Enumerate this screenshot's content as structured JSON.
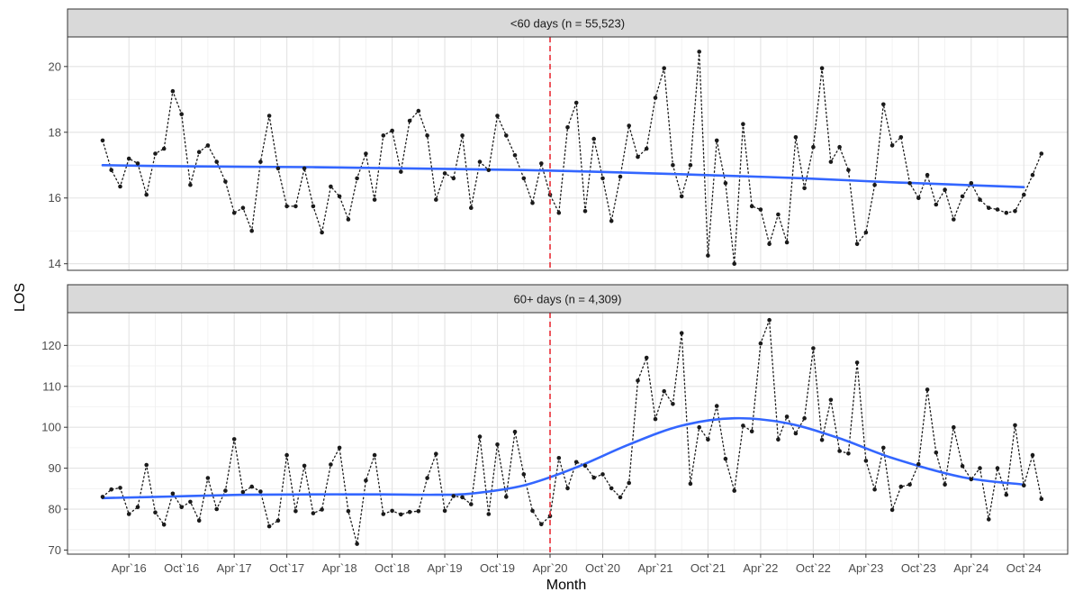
{
  "chart_data": {
    "type": "line",
    "xlabel": "Month",
    "ylabel": "LOS",
    "x_tick_labels": [
      "Apr`16",
      "Oct`16",
      "Apr`17",
      "Oct`17",
      "Apr`18",
      "Oct`18",
      "Apr`19",
      "Oct`19",
      "Apr`20",
      "Oct`20",
      "Apr`21",
      "Oct`21",
      "Apr`22",
      "Oct`22",
      "Apr`23",
      "Oct`23",
      "Apr`24",
      "Oct`24"
    ],
    "x_tick_months": [
      3,
      9,
      15,
      21,
      27,
      33,
      39,
      45,
      51,
      57,
      63,
      69,
      75,
      81,
      87,
      93,
      99,
      105
    ],
    "x_range_months": [
      -4,
      110
    ],
    "vline_month": 51,
    "vline_color": "#e8202a",
    "point_color": "#1a1a1a",
    "trend_color": "#3366ff",
    "grid": true,
    "panels": [
      {
        "strip_label": "<60 days (n = 55,523)",
        "ylim": [
          13.8,
          20.9
        ],
        "y_ticks": [
          14,
          16,
          18,
          20
        ],
        "x_start_month": 0,
        "monthly_values": [
          17.75,
          16.85,
          16.35,
          17.2,
          17.05,
          16.1,
          17.35,
          17.5,
          19.25,
          18.55,
          16.4,
          17.4,
          17.6,
          17.1,
          16.5,
          15.55,
          15.7,
          15.0,
          17.1,
          18.5,
          16.9,
          15.75,
          15.75,
          16.9,
          15.75,
          14.95,
          16.35,
          16.05,
          15.35,
          16.6,
          17.35,
          15.95,
          17.9,
          18.05,
          16.8,
          18.35,
          18.65,
          17.9,
          15.95,
          16.75,
          16.6,
          17.9,
          15.7,
          17.1,
          16.85,
          18.5,
          17.9,
          17.3,
          16.6,
          15.85,
          17.05,
          16.1,
          15.55,
          18.15,
          18.9,
          15.6,
          17.8,
          16.6,
          15.3,
          16.65,
          18.2,
          17.25,
          17.5,
          19.05,
          19.95,
          17.0,
          16.05,
          17.0,
          20.45,
          14.25,
          17.75,
          16.45,
          14.0,
          18.25,
          15.75,
          15.65,
          14.6,
          15.5,
          14.65,
          17.85,
          16.3,
          17.55,
          19.95,
          17.1,
          17.55,
          16.85,
          14.6,
          14.95,
          16.4,
          18.85,
          17.6,
          17.85,
          16.45,
          16.0,
          16.7,
          15.8,
          16.25,
          15.35,
          16.05,
          16.45,
          15.95,
          15.7,
          15.65,
          15.55,
          15.6,
          16.1,
          16.7,
          17.35
        ],
        "trend_values": [
          17.0,
          16.97,
          16.95,
          16.94,
          16.91,
          16.88,
          16.85,
          16.8,
          16.74,
          16.67,
          16.6,
          16.5,
          16.42,
          16.33
        ],
        "trend_months": [
          0,
          8,
          16,
          24,
          32,
          40,
          48,
          56,
          64,
          72,
          80,
          88,
          96,
          105
        ]
      },
      {
        "strip_label": "60+ days (n = 4,309)",
        "ylim": [
          69,
          128
        ],
        "y_ticks": [
          70,
          80,
          90,
          100,
          110,
          120
        ],
        "x_start_month": 0,
        "monthly_values": [
          83.0,
          84.8,
          85.2,
          78.8,
          80.5,
          90.8,
          79.2,
          76.2,
          83.8,
          80.5,
          81.8,
          77.2,
          87.6,
          80.0,
          84.5,
          97.1,
          84.2,
          85.5,
          84.3,
          75.8,
          77.2,
          93.2,
          79.5,
          90.6,
          79.0,
          79.9,
          90.9,
          95.0,
          79.5,
          71.5,
          87.0,
          93.2,
          78.8,
          79.6,
          78.7,
          79.3,
          79.5,
          87.6,
          93.5,
          79.6,
          83.2,
          82.9,
          81.2,
          97.7,
          78.8,
          95.8,
          83.0,
          98.9,
          88.5,
          79.6,
          76.3,
          78.3,
          92.5,
          85.1,
          91.5,
          90.6,
          87.7,
          88.5,
          85.1,
          82.9,
          86.4,
          111.4,
          117.0,
          102.0,
          108.8,
          105.7,
          123.0,
          86.2,
          100.0,
          97.0,
          105.2,
          92.3,
          84.5,
          100.4,
          99.0,
          120.5,
          126.2,
          97.0,
          102.6,
          98.5,
          102.2,
          119.3,
          96.9,
          106.7,
          94.2,
          93.6,
          115.8,
          91.8,
          84.8,
          95.0,
          79.8,
          85.5,
          86.0,
          91.0,
          109.2,
          93.8,
          86.0,
          100.0,
          90.5,
          87.3,
          90.0,
          77.5,
          90.0,
          83.5,
          100.5,
          85.8,
          93.2,
          82.5
        ],
        "trend_values": [
          82.7,
          83.1,
          83.5,
          83.6,
          83.6,
          83.5,
          83.8,
          85.8,
          90.2,
          95.8,
          100.4,
          102.2,
          101.0,
          97.3,
          92.5,
          87.8,
          86.0
        ],
        "trend_months": [
          0,
          8,
          16,
          24,
          32,
          38,
          42,
          48,
          54,
          60,
          66,
          72,
          78,
          84,
          90,
          98,
          105
        ]
      }
    ]
  }
}
